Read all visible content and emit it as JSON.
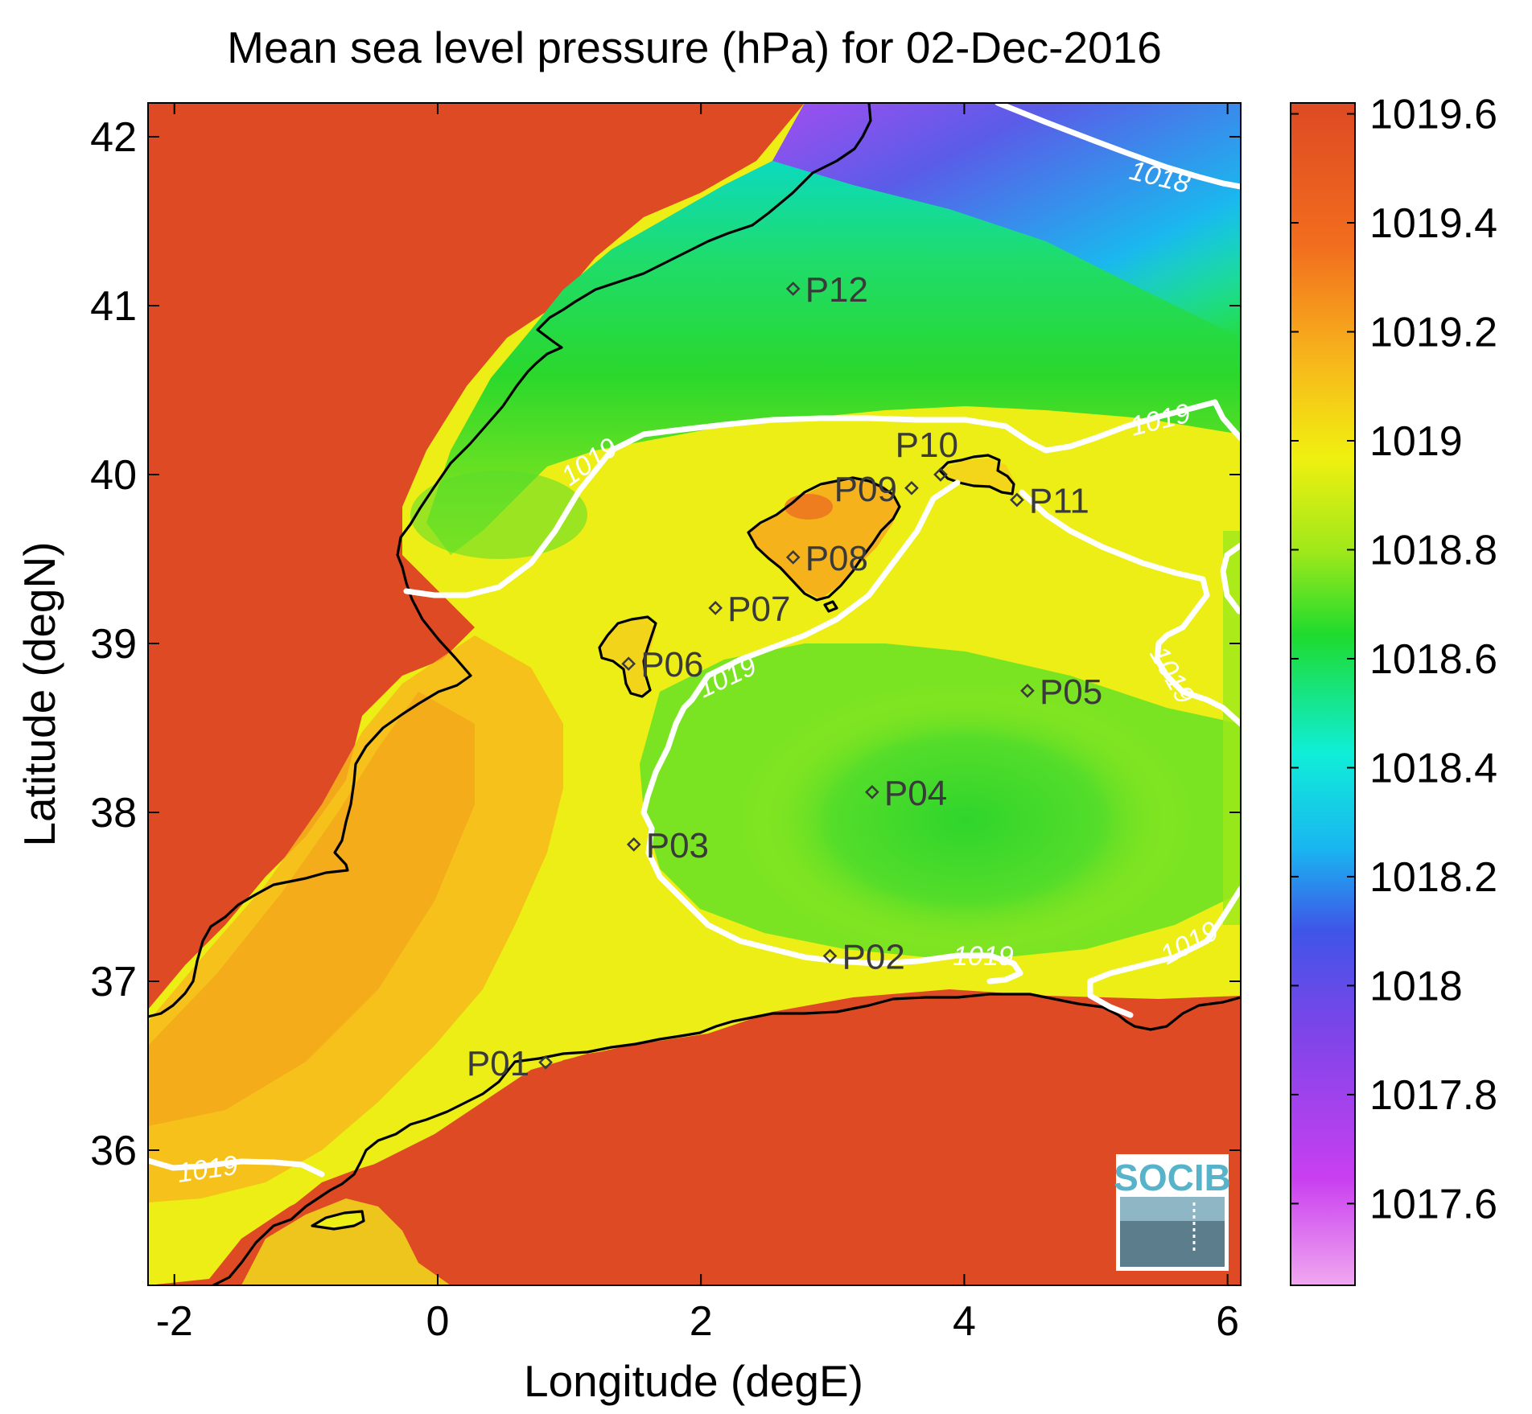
{
  "title": "Mean sea level pressure (hPa) for 02-Dec-2016",
  "xlabel": "Longitude (degE)",
  "ylabel": "Latitude (degN)",
  "x_ticks": [
    "-2",
    "0",
    "2",
    "4",
    "6"
  ],
  "y_ticks": [
    "36",
    "37",
    "38",
    "39",
    "40",
    "41",
    "42"
  ],
  "colorbar": {
    "ticks": [
      "1017.6",
      "1017.8",
      "1018",
      "1018.2",
      "1018.4",
      "1018.6",
      "1018.8",
      "1019",
      "1019.2",
      "1019.4",
      "1019.6"
    ],
    "range": [
      1017.45,
      1019.62
    ],
    "colors": [
      "#f0a8f0",
      "#c93ff0",
      "#7a45e8",
      "#3f55e8",
      "#19b6f0",
      "#10eed8",
      "#1edb2e",
      "#9ee81a",
      "#f0f010",
      "#f7b81b",
      "#f26d1e",
      "#dd4a23"
    ]
  },
  "contour_labels": [
    "1018",
    "1019",
    "1019",
    "1019",
    "1019",
    "1019",
    "1019",
    "1019"
  ],
  "stations": [
    {
      "name": "P01",
      "lon": 0.82,
      "lat": 36.52
    },
    {
      "name": "P02",
      "lon": 2.98,
      "lat": 37.15
    },
    {
      "name": "P03",
      "lon": 1.49,
      "lat": 37.81
    },
    {
      "name": "P04",
      "lon": 3.3,
      "lat": 38.12
    },
    {
      "name": "P05",
      "lon": 4.48,
      "lat": 38.72
    },
    {
      "name": "P06",
      "lon": 1.45,
      "lat": 38.88
    },
    {
      "name": "P07",
      "lon": 2.11,
      "lat": 39.21
    },
    {
      "name": "P08",
      "lon": 2.7,
      "lat": 39.51
    },
    {
      "name": "P09",
      "lon": 3.6,
      "lat": 39.92
    },
    {
      "name": "P10",
      "lon": 3.82,
      "lat": 40.0
    },
    {
      "name": "P11",
      "lon": 4.4,
      "lat": 39.85
    },
    {
      "name": "P12",
      "lon": 2.7,
      "lat": 41.1
    }
  ],
  "logo": {
    "text": "SOCIB"
  }
}
